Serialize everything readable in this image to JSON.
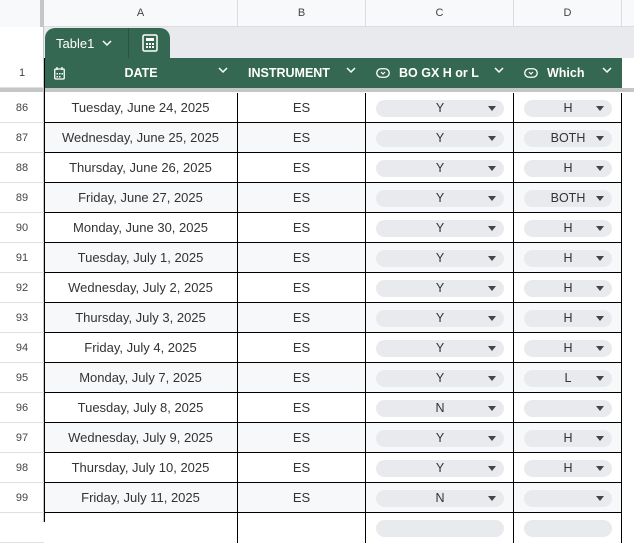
{
  "columns": [
    "A",
    "B",
    "C",
    "D"
  ],
  "table": {
    "name": "Table1",
    "header_row": "1"
  },
  "headers": {
    "date": "DATE",
    "instrument": "INSTRUMENT",
    "bo": "BO GX H or L",
    "which": "Which"
  },
  "colors": {
    "table_green": "#356853",
    "chip": "#e8eaed",
    "alt_row": "#f6f8f9"
  },
  "rows": [
    {
      "n": "86",
      "date": "Tuesday, June 24, 2025",
      "inst": "ES",
      "bo": "Y",
      "which": "H"
    },
    {
      "n": "87",
      "date": "Wednesday, June 25, 2025",
      "inst": "ES",
      "bo": "Y",
      "which": "BOTH"
    },
    {
      "n": "88",
      "date": "Thursday, June 26, 2025",
      "inst": "ES",
      "bo": "Y",
      "which": "H"
    },
    {
      "n": "89",
      "date": "Friday, June 27, 2025",
      "inst": "ES",
      "bo": "Y",
      "which": "BOTH"
    },
    {
      "n": "90",
      "date": "Monday, June 30, 2025",
      "inst": "ES",
      "bo": "Y",
      "which": "H"
    },
    {
      "n": "91",
      "date": "Tuesday, July 1, 2025",
      "inst": "ES",
      "bo": "Y",
      "which": "H"
    },
    {
      "n": "92",
      "date": "Wednesday, July 2, 2025",
      "inst": "ES",
      "bo": "Y",
      "which": "H"
    },
    {
      "n": "93",
      "date": "Thursday, July 3, 2025",
      "inst": "ES",
      "bo": "Y",
      "which": "H"
    },
    {
      "n": "94",
      "date": "Friday, July 4, 2025",
      "inst": "ES",
      "bo": "Y",
      "which": "H"
    },
    {
      "n": "95",
      "date": "Monday, July 7, 2025",
      "inst": "ES",
      "bo": "Y",
      "which": "L"
    },
    {
      "n": "96",
      "date": "Tuesday, July 8, 2025",
      "inst": "ES",
      "bo": "N",
      "which": ""
    },
    {
      "n": "97",
      "date": "Wednesday, July 9, 2025",
      "inst": "ES",
      "bo": "Y",
      "which": "H"
    },
    {
      "n": "98",
      "date": "Thursday, July 10, 2025",
      "inst": "ES",
      "bo": "Y",
      "which": "H"
    },
    {
      "n": "99",
      "date": "Friday, July 11, 2025",
      "inst": "ES",
      "bo": "N",
      "which": ""
    }
  ]
}
